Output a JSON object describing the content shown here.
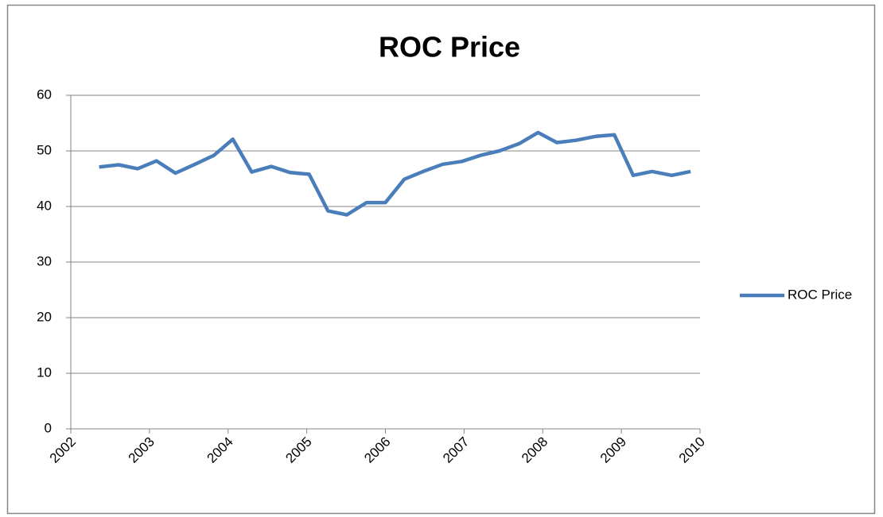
{
  "chart_data": {
    "type": "line",
    "title": "ROC Price",
    "x": [
      2002.36,
      2002.61,
      2002.85,
      2003.09,
      2003.33,
      2003.58,
      2003.82,
      2004.06,
      2004.3,
      2004.55,
      2004.79,
      2005.03,
      2005.27,
      2005.51,
      2005.76,
      2006.0,
      2006.24,
      2006.48,
      2006.73,
      2006.97,
      2007.21,
      2007.45,
      2007.7,
      2007.94,
      2008.18,
      2008.42,
      2008.67,
      2008.91,
      2009.15,
      2009.39,
      2009.64,
      2009.88
    ],
    "series": [
      {
        "name": "ROC Price",
        "color": "#4a7ebb",
        "values": [
          47.1,
          47.5,
          46.8,
          48.2,
          46.0,
          47.6,
          49.2,
          52.1,
          46.2,
          47.2,
          46.1,
          45.8,
          39.2,
          38.5,
          40.7,
          40.7,
          44.9,
          46.3,
          47.6,
          48.1,
          49.2,
          50.0,
          51.3,
          53.3,
          51.5,
          51.9,
          52.6,
          52.9,
          45.6,
          46.3,
          45.6,
          46.3
        ]
      }
    ],
    "xlim": [
      2002,
      2010
    ],
    "xticks": [
      2002,
      2003,
      2004,
      2005,
      2006,
      2007,
      2008,
      2009,
      2010
    ],
    "ylim": [
      0,
      60
    ],
    "yticks": [
      0,
      10,
      20,
      30,
      40,
      50,
      60
    ],
    "grid": true,
    "legend": "right"
  }
}
